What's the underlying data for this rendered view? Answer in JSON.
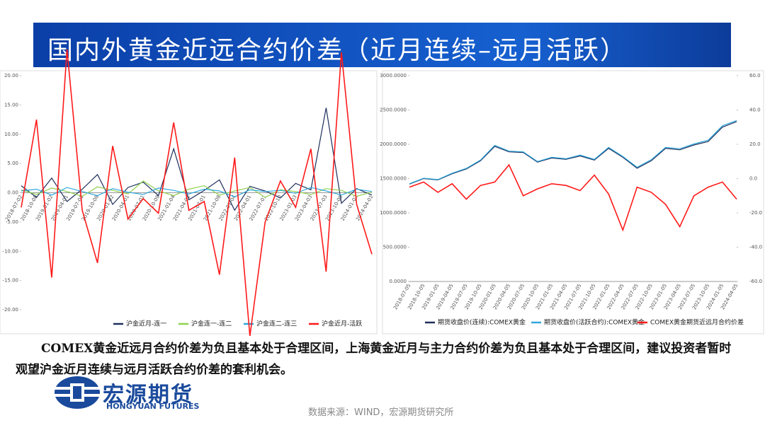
{
  "header": {
    "title": "国内外黄金近远合约价差（近月连续–远月活跃）"
  },
  "chart_data": [
    {
      "type": "line",
      "categories": [
        "2018-07-02",
        "2018-10-08",
        "2019-01-02",
        "2019-04-01",
        "2019-07-01",
        "2019-10-08",
        "2020-01-02",
        "2020-04-01",
        "2020-07-01",
        "2020-10-09",
        "2021-01-04",
        "2021-04-01",
        "2021-07-01",
        "2021-10-08",
        "2022-01-04",
        "2022-04-01",
        "2022-07-01",
        "2022-10-10",
        "2023-01-03",
        "2023-04-03",
        "2023-07-03",
        "2023-10-09",
        "2024-01-02",
        "2024-04-01"
      ],
      "ylim": [
        -20,
        20
      ],
      "yticks": [
        {
          "value": -20,
          "label": "-20.00"
        },
        {
          "value": -15,
          "label": "-15.00"
        },
        {
          "value": -10,
          "label": "-10.00"
        },
        {
          "value": -5,
          "label": "-5.00"
        },
        {
          "value": 0,
          "label": "0.00"
        },
        {
          "value": 5,
          "label": "5.00"
        },
        {
          "value": 10,
          "label": "10.00"
        },
        {
          "value": 15,
          "label": "15.00"
        },
        {
          "value": 20,
          "label": "20.00"
        }
      ],
      "series": [
        {
          "name": "沪金近月-连一",
          "color": "#1f2f5c",
          "values": [
            1.2,
            -0.8,
            2.5,
            -1.5,
            0.6,
            3.1,
            -2.0,
            0.9,
            1.8,
            -0.5,
            7.5,
            -1.2,
            0.4,
            2.2,
            -3.0,
            1.1,
            0.3,
            -0.9,
            1.6,
            0.5,
            14.5,
            -1.8,
            0.7,
            -0.4
          ]
        },
        {
          "name": "沪金连一-连二",
          "color": "#8fd14f",
          "values": [
            0.5,
            -0.3,
            0.8,
            0.2,
            -0.6,
            1.0,
            0.4,
            -0.2,
            2.0,
            0.3,
            -0.5,
            0.6,
            1.2,
            -0.4,
            0.3,
            0.9,
            -0.8,
            0.5,
            0.2,
            -0.3,
            0.7,
            0.4,
            -0.6,
            0.1
          ]
        },
        {
          "name": "沪金连二-连三",
          "color": "#2fa7dc",
          "values": [
            0.3,
            0.6,
            -0.4,
            0.9,
            0.2,
            -0.5,
            0.7,
            0.1,
            -0.3,
            0.8,
            0.4,
            -0.2,
            0.6,
            0.3,
            -0.7,
            0.5,
            0.2,
            0.4,
            -0.1,
            0.9,
            0.3,
            -0.4,
            0.6,
            0.2
          ]
        },
        {
          "name": "沪金近月-活跃",
          "color": "#ff1a1a",
          "values": [
            -2.5,
            12.5,
            -14.5,
            24.5,
            -3.0,
            -12.0,
            8.0,
            -4.5,
            -1.0,
            -3.5,
            12.0,
            -3.0,
            -1.5,
            -14.0,
            6.0,
            -24.5,
            -5.0,
            2.0,
            -2.5,
            7.5,
            -13.5,
            24.0,
            -2.0,
            -10.5
          ]
        }
      ]
    },
    {
      "type": "line",
      "categories": [
        "2018-07-05",
        "2018-10-05",
        "2019-01-05",
        "2019-04-05",
        "2019-07-05",
        "2019-10-05",
        "2020-01-05",
        "2020-04-05",
        "2020-07-05",
        "2020-10-05",
        "2021-01-05",
        "2021-04-05",
        "2021-07-05",
        "2021-10-05",
        "2022-01-05",
        "2022-04-05",
        "2022-07-05",
        "2022-10-05",
        "2023-01-05",
        "2023-04-05",
        "2023-07-05",
        "2023-10-05",
        "2024-01-05",
        "2024-04-05"
      ],
      "ylim": [
        0,
        3000
      ],
      "yticks": [
        {
          "value": 0,
          "label": "0.0000"
        },
        {
          "value": 500,
          "label": "500.0000"
        },
        {
          "value": 1000,
          "label": "1000.0000"
        },
        {
          "value": 1500,
          "label": "1500.0000"
        },
        {
          "value": 2000,
          "label": "2000.0000"
        },
        {
          "value": 2500,
          "label": "2500.0000"
        },
        {
          "value": 3000,
          "label": "3000.0000"
        }
      ],
      "y2lim": [
        -60,
        60
      ],
      "y2ticks": [
        {
          "value": -60,
          "label": "-60.0"
        },
        {
          "value": -40,
          "label": "-40.0"
        },
        {
          "value": -20,
          "label": "-20.0"
        },
        {
          "value": 0,
          "label": "0.0"
        },
        {
          "value": 20,
          "label": "20.0"
        },
        {
          "value": 40,
          "label": "40.0"
        },
        {
          "value": 60,
          "label": "60.0"
        }
      ],
      "series": [
        {
          "name": "期货收盘价(连续):COMEX黄金",
          "color": "#1f2f5c",
          "values": [
            1420,
            1500,
            1480,
            1570,
            1640,
            1760,
            1970,
            1890,
            1880,
            1740,
            1800,
            1780,
            1830,
            1770,
            1940,
            1810,
            1650,
            1760,
            1940,
            1920,
            1990,
            2040,
            2250,
            2330
          ]
        },
        {
          "name": "期货收盘价(活跃合约):COMEX黄金",
          "color": "#2fa7dc",
          "values": [
            1425,
            1505,
            1486,
            1578,
            1648,
            1770,
            1985,
            1900,
            1890,
            1748,
            1810,
            1790,
            1842,
            1780,
            1955,
            1822,
            1665,
            1775,
            1955,
            1935,
            2005,
            2060,
            2270,
            2345
          ]
        },
        {
          "name": "COMEX黄金期货近远月合约价差",
          "color": "#ff1a1a",
          "axis": "y2",
          "values": [
            -5,
            -2,
            -8,
            -3,
            -12,
            -4,
            -2,
            8,
            -10,
            -6,
            -3,
            -4,
            -7,
            2,
            -9,
            -30,
            -5,
            -8,
            -15,
            -28,
            -10,
            -5,
            -2,
            -12
          ]
        }
      ]
    }
  ],
  "body": {
    "text": "COMEX黄金近远月合约价差为负且基本处于合理区间，上海黄金近月与主力合约价差为负且基本处于合理区间，建议投资者暂时观望沪金近月连续与远月活跃合约价差的套利机会。"
  },
  "logo": {
    "name": "宏源期货",
    "english": "HONGYUAN FUTURES"
  },
  "footer": {
    "source": "数据来源：WIND，宏源期货研究所"
  }
}
